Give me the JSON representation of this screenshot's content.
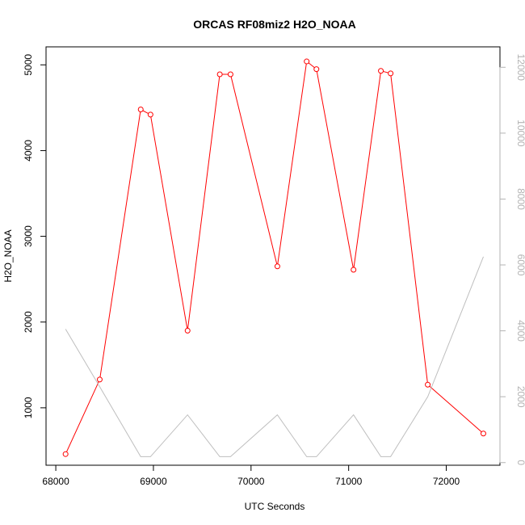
{
  "chart_data": {
    "type": "line",
    "title": "ORCAS RF08miz2 H2O_NOAA",
    "xlabel": "UTC Seconds",
    "ylabel": "H2O_NOAA",
    "ylabel_right": "",
    "xlim": [
      67900,
      72550
    ],
    "ylim": [
      330,
      5210
    ],
    "ylim_right": [
      -80,
      12620
    ],
    "x_ticks": [
      68000,
      69000,
      70000,
      71000,
      72000
    ],
    "y_ticks": [
      1000,
      2000,
      3000,
      4000,
      5000
    ],
    "y_ticks_right": [
      0,
      2000,
      4000,
      6000,
      8000,
      10000,
      12000
    ],
    "grid": false,
    "legend": "none",
    "colors": {
      "primary": "#ff0000",
      "secondary": "#bebebe"
    },
    "series": [
      {
        "axis": "left",
        "style": "line+points",
        "color": "#ff0000",
        "x": [
          68100,
          68450,
          68870,
          68970,
          69350,
          69680,
          69790,
          70270,
          70570,
          70670,
          71050,
          71330,
          71430,
          71810,
          72380
        ],
        "y": [
          460,
          1330,
          4480,
          4420,
          1900,
          4890,
          4890,
          2650,
          5040,
          4950,
          2610,
          4930,
          4900,
          1270,
          700
        ]
      },
      {
        "axis": "right",
        "style": "line",
        "color": "#bebebe",
        "x": [
          68100,
          68450,
          68870,
          68970,
          69350,
          69680,
          69790,
          70270,
          70570,
          70670,
          71050,
          71330,
          71430,
          71810,
          72380
        ],
        "y": [
          4050,
          2300,
          180,
          180,
          1450,
          180,
          180,
          1450,
          180,
          180,
          1450,
          180,
          180,
          2000,
          6250
        ]
      }
    ]
  }
}
